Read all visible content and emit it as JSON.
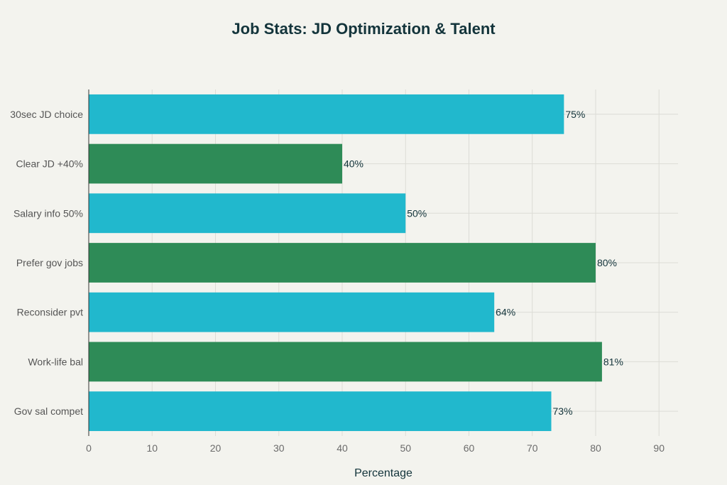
{
  "chart_data": {
    "type": "bar",
    "orientation": "horizontal",
    "title": "Job Stats: JD Optimization & Talent",
    "xlabel": "Percentage",
    "ylabel": "",
    "xlim": [
      0,
      93
    ],
    "xticks": [
      0,
      10,
      20,
      30,
      40,
      50,
      60,
      70,
      80,
      90
    ],
    "grid": true,
    "categories": [
      "30sec JD choice",
      "Clear JD +40%",
      "Salary info 50%",
      "Prefer gov jobs",
      "Reconsider pvt",
      "Work-life bal",
      "Gov sal compet"
    ],
    "values": [
      75,
      40,
      50,
      80,
      64,
      81,
      73
    ],
    "data_labels": [
      "75%",
      "40%",
      "50%",
      "80%",
      "64%",
      "81%",
      "73%"
    ],
    "colors": [
      "#21b8cd",
      "#2e8b57",
      "#21b8cd",
      "#2e8b57",
      "#21b8cd",
      "#2e8b57",
      "#21b8cd"
    ]
  }
}
